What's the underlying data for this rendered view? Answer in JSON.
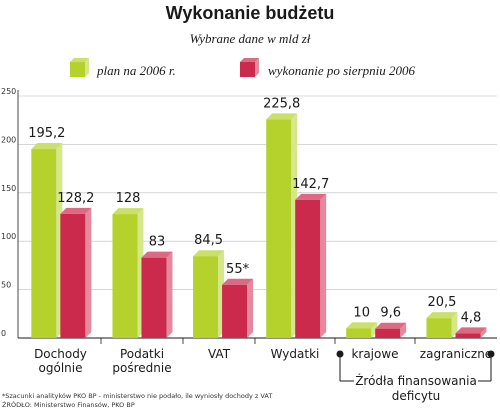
{
  "chart_data": {
    "type": "bar",
    "title": "Wykonanie budżetu",
    "subtitle": "Wybrane dane w mld zł",
    "xlabel": "",
    "ylabel": "",
    "ylim": [
      0,
      250
    ],
    "yticks": [
      0,
      50,
      100,
      150,
      200,
      250
    ],
    "yticks_extra": [],
    "grid": true,
    "legend_position": "top",
    "categories": [
      "Dochody ogólnie",
      "Podatki pośrednie",
      "VAT",
      "Wydatki",
      "krajowe",
      "zagraniczne"
    ],
    "category_lines": [
      [
        "Dochody",
        "ogólnie"
      ],
      [
        "Podatki",
        "pośrednie"
      ],
      [
        "VAT"
      ],
      [
        "Wydatki"
      ],
      [
        "krajowe"
      ],
      [
        "zagraniczne"
      ]
    ],
    "series": [
      {
        "name": "plan na 2006 r.",
        "color": "#b5d22c",
        "values": [
          195.2,
          128,
          84.5,
          225.8,
          10,
          20.5
        ],
        "labels": [
          "195,2",
          "128",
          "84,5",
          "225,8",
          "10",
          "20,5"
        ]
      },
      {
        "name": "wykonanie po sierpniu 2006",
        "color": "#cc2a4c",
        "values": [
          128.2,
          83,
          55,
          142.7,
          9.6,
          4.8
        ],
        "labels": [
          "128,2",
          "83",
          "55*",
          "142,7",
          "9,6",
          "4,8"
        ]
      }
    ],
    "group_label": [
      "Źródła finansowania",
      "deficytu"
    ],
    "footnotes": [
      "*Szacunki analityków PKO BP - ministerstwo nie podało, ile wyniosły dochody z VAT",
      "ŹRÓDŁO: Ministerstwo Finansów, PKO BP"
    ]
  }
}
